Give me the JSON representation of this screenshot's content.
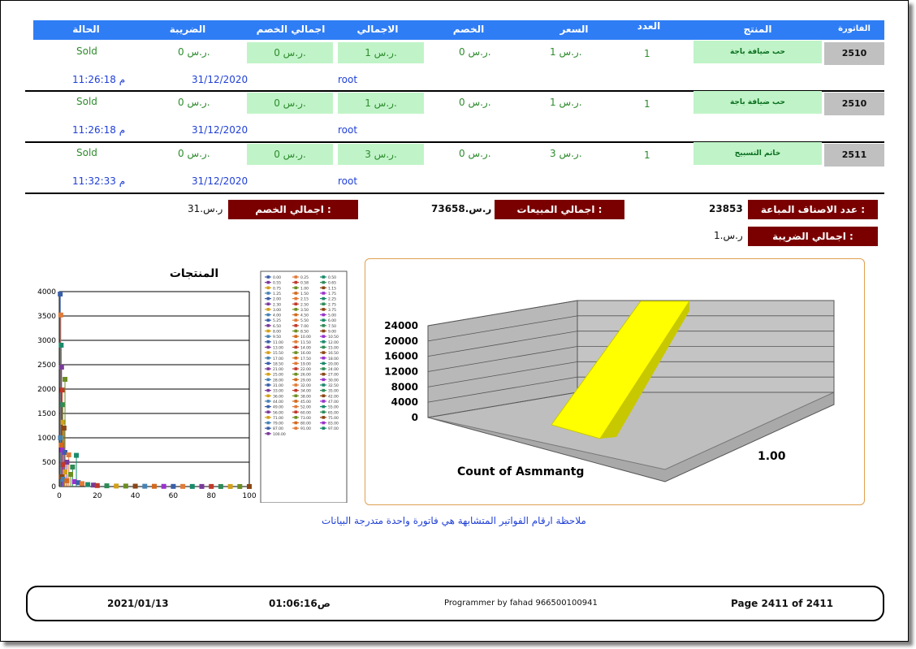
{
  "headers": [
    "الفاتورة",
    "المنتج",
    "العدد",
    "السعر",
    "الخصم",
    "الاجمالي",
    "اجمالي الخصم",
    "الضريبة",
    "الحالة"
  ],
  "rows": [
    {
      "invoice": "2510",
      "product": "حب ضيافة باجة",
      "qty": "1",
      "price": "1 ر.س.",
      "discount": "0 ر.س.",
      "total": "1 ر.س.",
      "total_discount": "0 ر.س.",
      "tax": "0 ر.س.",
      "status": "Sold",
      "user": "root",
      "date": "31/12/2020",
      "time": "11:26:18 م"
    },
    {
      "invoice": "2510",
      "product": "حب ضيافة باجة",
      "qty": "1",
      "price": "1 ر.س.",
      "discount": "0 ر.س.",
      "total": "1 ر.س.",
      "total_discount": "0 ر.س.",
      "tax": "0 ر.س.",
      "status": "Sold",
      "user": "root",
      "date": "31/12/2020",
      "time": "11:26:18 م"
    },
    {
      "invoice": "2511",
      "product": "خاتم التسبيح",
      "qty": "1",
      "price": "3 ر.س.",
      "discount": "0 ر.س.",
      "total": "3 ر.س.",
      "total_discount": "0 ر.س.",
      "tax": "0 ر.س.",
      "status": "Sold",
      "user": "root",
      "date": "31/12/2020",
      "time": "11:32:33 م"
    }
  ],
  "summary": {
    "items_sold_label": "عدد الاصناف المباعة :",
    "items_sold_value": "23853",
    "sales_total_label": "اجمالي المبيعات :",
    "sales_total_value": "ر.س.73658",
    "discount_total_label": "اجمالي الخصم :",
    "discount_total_value": "ر.س.31",
    "tax_total_label": "اجمالي الضريبة :",
    "tax_total_value": "ر.س.1"
  },
  "note": "ملاحظة ارقام الفواتير المتشابهة هي فاتورة واحدة متدرجة البيانات",
  "footer": {
    "date": "2021/01/13",
    "time": "01:06:16ص",
    "programmer": "Programmer by fahad 966500100941",
    "page": "Page 2411 of 2411"
  },
  "chart_data": [
    {
      "type": "scatter",
      "title": "المنتجات",
      "xlim": [
        0,
        100
      ],
      "ylim": [
        0,
        4000
      ],
      "xticks": [
        0,
        20,
        40,
        60,
        80,
        100
      ],
      "yticks": [
        0,
        500,
        1000,
        1500,
        2000,
        2500,
        3000,
        3500,
        4000
      ],
      "grid": true,
      "legend_position": "right",
      "legend": [
        "0.00",
        "0.25",
        "0.50",
        "0.55",
        "0.58",
        "0.65",
        "0.75",
        "1.00",
        "1.15",
        "1.25",
        "1.50",
        "1.75",
        "2.00",
        "2.15",
        "2.25",
        "2.30",
        "2.50",
        "2.75",
        "3.00",
        "3.50",
        "3.75",
        "4.00",
        "4.50",
        "5.00",
        "5.25",
        "5.50",
        "6.00",
        "6.50",
        "7.00",
        "7.50",
        "8.00",
        "8.50",
        "9.00",
        "9.50",
        "10.00",
        "10.50",
        "11.00",
        "11.50",
        "12.00",
        "13.00",
        "14.00",
        "15.00",
        "15.50",
        "16.00",
        "16.50",
        "17.00",
        "17.50",
        "18.00",
        "18.50",
        "19.00",
        "20.00",
        "21.00",
        "22.00",
        "24.00",
        "25.00",
        "26.00",
        "27.00",
        "28.00",
        "29.00",
        "30.00",
        "31.00",
        "32.00",
        "32.50",
        "33.00",
        "34.00",
        "35.00",
        "36.00",
        "38.00",
        "42.00",
        "44.00",
        "45.00",
        "47.00",
        "49.00",
        "52.00",
        "55.00",
        "56.00",
        "60.00",
        "65.00",
        "71.00",
        "73.00",
        "75.00",
        "79.00",
        "80.00",
        "83.00",
        "87.00",
        "91.00",
        "97.00",
        "100.00"
      ],
      "points": [
        [
          0.5,
          3950
        ],
        [
          0.8,
          3520
        ],
        [
          1,
          2900
        ],
        [
          1.2,
          2450
        ],
        [
          1.5,
          1980
        ],
        [
          1.8,
          1680
        ],
        [
          2,
          1320
        ],
        [
          3,
          2200
        ],
        [
          2.5,
          1200
        ],
        [
          0.6,
          1000
        ],
        [
          1,
          850
        ],
        [
          1.5,
          750
        ],
        [
          3,
          700
        ],
        [
          5,
          650
        ],
        [
          9,
          640
        ],
        [
          4,
          500
        ],
        [
          2,
          450
        ],
        [
          7,
          400
        ],
        [
          3,
          300
        ],
        [
          6,
          250
        ],
        [
          1,
          200
        ],
        [
          2,
          150
        ],
        [
          4,
          120
        ],
        [
          8,
          100
        ],
        [
          10,
          80
        ],
        [
          12,
          60
        ],
        [
          15,
          40
        ],
        [
          18,
          30
        ],
        [
          20,
          20
        ],
        [
          25,
          15
        ],
        [
          30,
          10
        ],
        [
          35,
          10
        ],
        [
          40,
          8
        ],
        [
          45,
          6
        ],
        [
          50,
          5
        ],
        [
          55,
          4
        ],
        [
          60,
          3
        ],
        [
          65,
          3
        ],
        [
          70,
          2
        ],
        [
          75,
          2
        ],
        [
          80,
          2
        ],
        [
          85,
          1
        ],
        [
          90,
          1
        ],
        [
          95,
          1
        ],
        [
          100,
          1
        ]
      ],
      "colors": [
        "#3a5fa8",
        "#e07b39",
        "#1a8a6a",
        "#7a3a9a",
        "#c0392b",
        "#2e8b57",
        "#d4a017",
        "#6b8e23",
        "#8b4513",
        "#4682b4",
        "#d2691e",
        "#9932cc"
      ]
    },
    {
      "type": "area",
      "title": "",
      "xlabel": "Count of Asmmantg",
      "category": "1.00",
      "yticks": [
        0,
        4000,
        8000,
        12000,
        16000,
        20000,
        24000
      ],
      "ylim": [
        0,
        24000
      ],
      "value": 23853,
      "color": "#ffff00"
    }
  ]
}
